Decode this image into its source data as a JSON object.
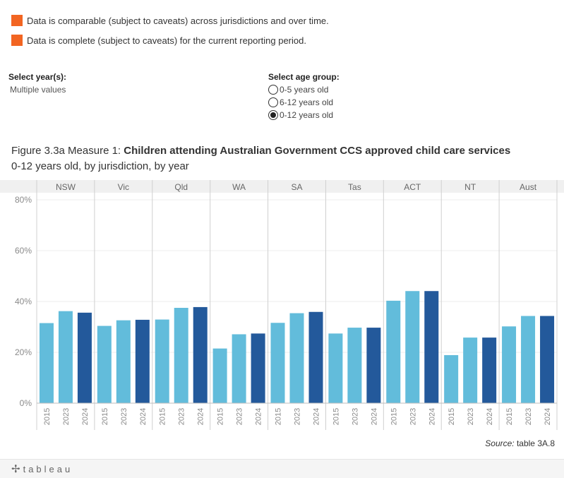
{
  "legend": [
    {
      "text": "Data is comparable (subject to caveats) across jurisdictions and over time.",
      "color": "#f26522"
    },
    {
      "text": "Data is complete (subject to caveats) for the current reporting period.",
      "color": "#f26522"
    }
  ],
  "filters": {
    "year": {
      "title": "Select year(s):",
      "value": "Multiple values"
    },
    "age": {
      "title": "Select age group:",
      "options": [
        "0-5 years old",
        "6-12 years old",
        "0-12 years old"
      ],
      "selected": "0-12 years old"
    }
  },
  "figure": {
    "prefix": "Figure 3.3a Measure 1: ",
    "title_bold": "Children attending Australian Government CCS approved child care services",
    "subtitle": "0-12 years old, by jurisdiction, by year"
  },
  "source": {
    "label": "Source:",
    "text": " table 3A.8"
  },
  "footer": {
    "logo_text": "tableau"
  },
  "colors": {
    "light": "#62bcdb",
    "dark": "#23599b",
    "orange": "#f26522"
  },
  "chart_data": {
    "type": "bar",
    "panels": [
      "NSW",
      "Vic",
      "Qld",
      "WA",
      "SA",
      "Tas",
      "ACT",
      "NT",
      "Aust"
    ],
    "categories": [
      "2015",
      "2023",
      "2024"
    ],
    "series": [
      {
        "panel": "NSW",
        "values": [
          31.5,
          36.2,
          35.6
        ]
      },
      {
        "panel": "Vic",
        "values": [
          30.4,
          32.6,
          32.8
        ]
      },
      {
        "panel": "Qld",
        "values": [
          32.9,
          37.5,
          37.8
        ]
      },
      {
        "panel": "WA",
        "values": [
          21.5,
          27.1,
          27.4
        ]
      },
      {
        "panel": "SA",
        "values": [
          31.6,
          35.4,
          35.9
        ]
      },
      {
        "panel": "Tas",
        "values": [
          27.4,
          29.7,
          29.7
        ]
      },
      {
        "panel": "ACT",
        "values": [
          40.3,
          44.1,
          44.1
        ]
      },
      {
        "panel": "NT",
        "values": [
          18.9,
          25.8,
          25.8
        ]
      },
      {
        "panel": "Aust",
        "values": [
          30.2,
          34.3,
          34.3
        ]
      }
    ],
    "ylim": [
      0,
      80
    ],
    "yticks": [
      "0%",
      "20%",
      "40%",
      "60%",
      "80%"
    ],
    "ytick_values": [
      0,
      20,
      40,
      60,
      80
    ],
    "grid": true
  }
}
